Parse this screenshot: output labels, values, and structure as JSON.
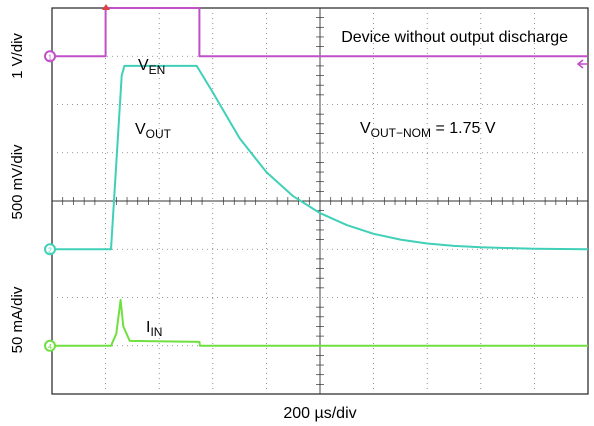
{
  "chart_data": {
    "type": "line",
    "title": "Device without output discharge",
    "x_scale_label": "200 µs/div",
    "x_divisions": 10,
    "y_divisions": 8,
    "annotation": {
      "main": "V",
      "sub": "OUT−NOM",
      "rest": " = 1.75 V"
    },
    "channels": [
      {
        "id": "1",
        "label_main": "V",
        "label_sub": "EN",
        "scale_label": "1 V/div",
        "color": "#c050c8",
        "baseline_div": 7.0,
        "points": [
          [
            0,
            7.0
          ],
          [
            1.0,
            7.0
          ],
          [
            1.0,
            8.0
          ],
          [
            2.75,
            8.0
          ],
          [
            2.75,
            7.0
          ],
          [
            10,
            7.0
          ]
        ]
      },
      {
        "id": "2",
        "label_main": "V",
        "label_sub": "OUT",
        "scale_label": "500 mV/div",
        "color": "#40d0b8",
        "baseline_div": 3.0,
        "points": [
          [
            0,
            3.0
          ],
          [
            1.1,
            3.0
          ],
          [
            1.3,
            6.6
          ],
          [
            1.35,
            6.8
          ],
          [
            2.7,
            6.8
          ],
          [
            3.0,
            6.25
          ],
          [
            3.5,
            5.3
          ],
          [
            4.0,
            4.6
          ],
          [
            4.5,
            4.1
          ],
          [
            5.0,
            3.75
          ],
          [
            5.5,
            3.5
          ],
          [
            6.0,
            3.32
          ],
          [
            6.5,
            3.2
          ],
          [
            7.0,
            3.12
          ],
          [
            7.5,
            3.07
          ],
          [
            8.0,
            3.04
          ],
          [
            9.0,
            3.01
          ],
          [
            10,
            3.0
          ]
        ]
      },
      {
        "id": "4",
        "label_main": "I",
        "label_sub": "IN",
        "scale_label": "50 mA/div",
        "color": "#70e040",
        "baseline_div": 1.0,
        "points": [
          [
            0,
            1.0
          ],
          [
            1.1,
            1.0
          ],
          [
            1.2,
            1.25
          ],
          [
            1.28,
            1.95
          ],
          [
            1.33,
            1.4
          ],
          [
            1.45,
            1.1
          ],
          [
            2.75,
            1.08
          ],
          [
            2.76,
            1.0
          ],
          [
            10,
            1.0
          ]
        ]
      }
    ],
    "grid": true
  }
}
